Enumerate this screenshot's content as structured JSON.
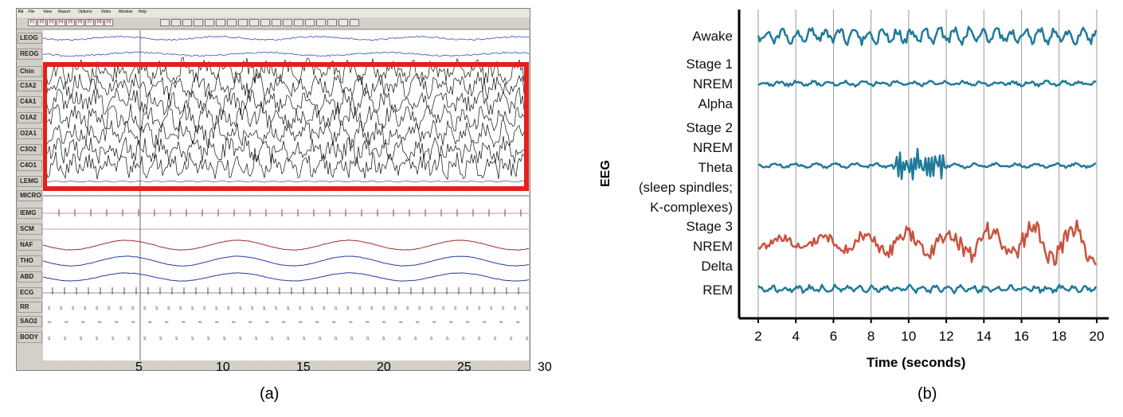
{
  "figure_a": {
    "menu": [
      "Fd",
      "File",
      "View",
      "Report",
      "Options",
      "Video",
      "Window",
      "Help"
    ],
    "toolbar_buttons": [
      "F1",
      "F2",
      "F3",
      "F4",
      "F5",
      "F6",
      "F7",
      "F8",
      "F9"
    ],
    "channels": [
      "LEOG",
      "REOG",
      "Chin",
      "C3A2",
      "C4A1",
      "O1A2",
      "O2A1",
      "C3O2",
      "C4O1",
      "LEMG",
      "MICRO",
      "IEMG",
      "SCM",
      "NAF",
      "THO",
      "ABD",
      "ECG",
      "RR",
      "SAO2",
      "BODY"
    ],
    "x_ticks": [
      "5",
      "10",
      "15",
      "20",
      "25",
      "30"
    ],
    "highlight_color": "#e3201b",
    "caption": "(a)"
  },
  "figure_b": {
    "stages": [
      {
        "label": "Awake",
        "color": "#1f7a9a"
      },
      {
        "label": "Stage 1\nNREM\nAlpha",
        "color": "#1f7a9a"
      },
      {
        "label": "Stage 2\nNREM\nTheta\n(sleep spindles;\nK-complexes)",
        "color": "#1f7a9a"
      },
      {
        "label": "Stage 3\nNREM\nDelta",
        "color": "#c9533f"
      },
      {
        "label": "REM",
        "color": "#1f7a9a"
      }
    ],
    "y_label": "EEG",
    "x_label": "Time (seconds)",
    "x_ticks": [
      "2",
      "4",
      "6",
      "8",
      "10",
      "12",
      "14",
      "16",
      "18",
      "20"
    ],
    "caption": "(b)"
  }
}
